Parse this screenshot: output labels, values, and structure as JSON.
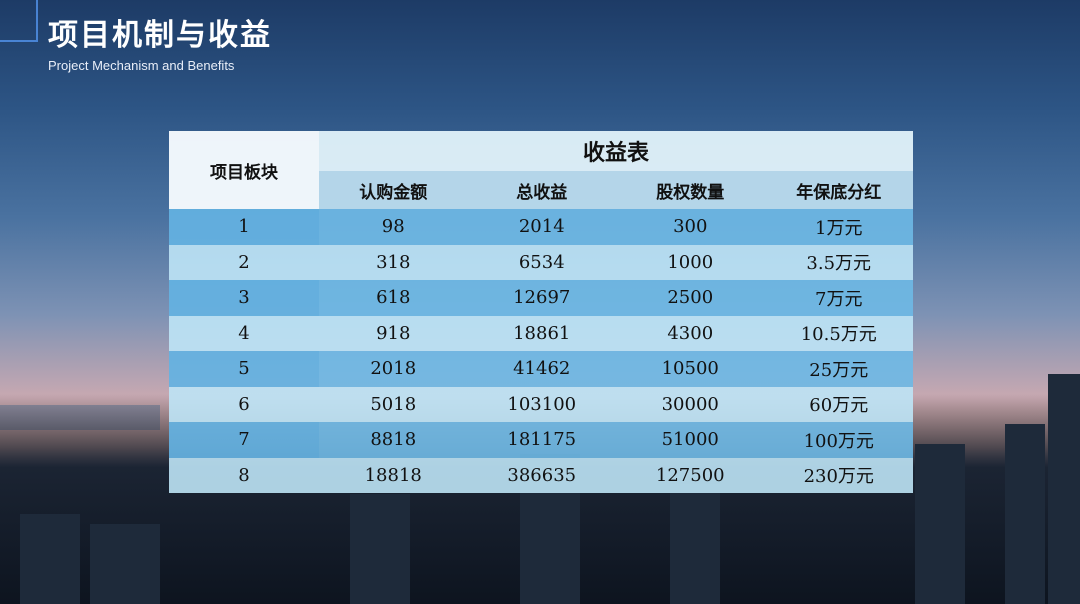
{
  "header": {
    "title": "项目机制与收益",
    "subtitle": "Project Mechanism and Benefits"
  },
  "table": {
    "row_header": "项目板块",
    "group_header": "收益表",
    "columns": [
      "认购金额",
      "总收益",
      "股权数量",
      "年保底分红"
    ],
    "rows": [
      [
        "1",
        "98",
        "2014",
        "300",
        "1万元"
      ],
      [
        "2",
        "318",
        "6534",
        "1000",
        "3.5万元"
      ],
      [
        "3",
        "618",
        "12697",
        "2500",
        "7万元"
      ],
      [
        "4",
        "918",
        "18861",
        "4300",
        "10.5万元"
      ],
      [
        "5",
        "2018",
        "41462",
        "10500",
        "25万元"
      ],
      [
        "6",
        "5018",
        "103100",
        "30000",
        "60万元"
      ],
      [
        "7",
        "8818",
        "181175",
        "51000",
        "100万元"
      ],
      [
        "8",
        "18818",
        "386635",
        "127500",
        "230万元"
      ]
    ]
  }
}
